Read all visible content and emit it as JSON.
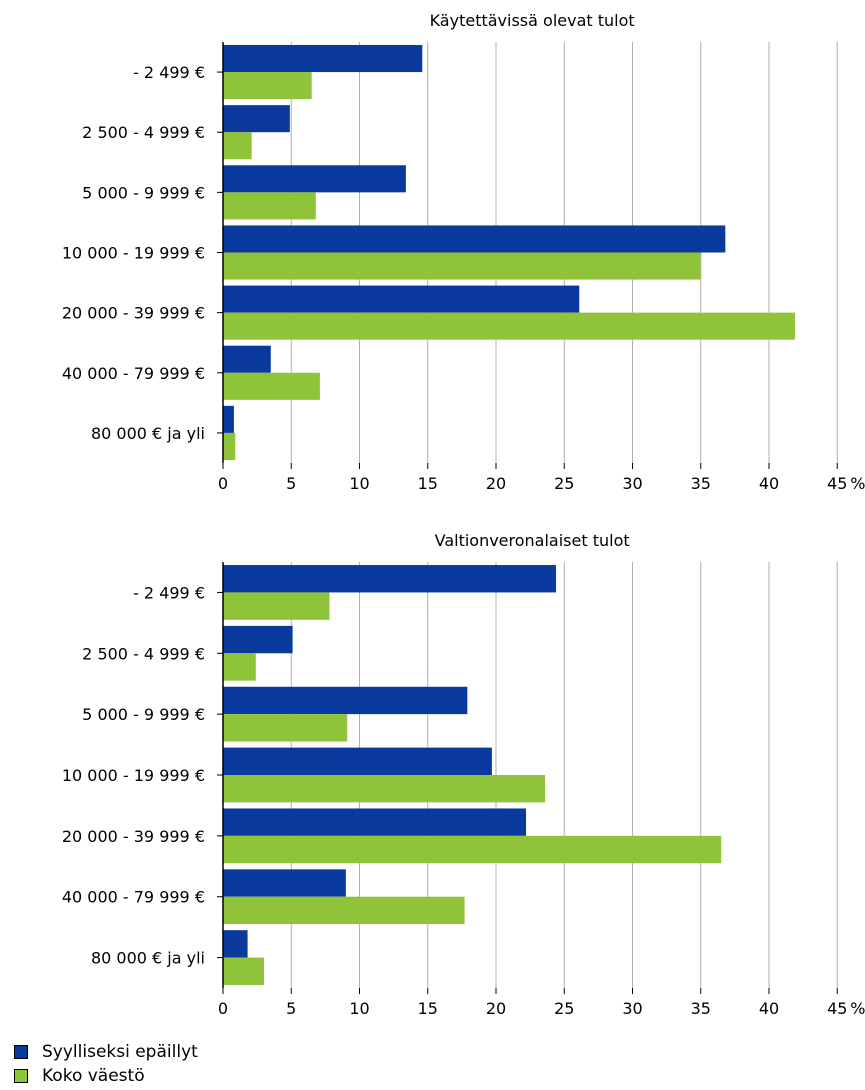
{
  "colors": {
    "suspected": "#0b3a9e",
    "population": "#8fc43a",
    "grid": "#b0b0b0",
    "axis": "#000000"
  },
  "unit_label": "%",
  "chart_data": [
    {
      "type": "bar",
      "orientation": "horizontal",
      "title": "Käytettävissä olevat tulot",
      "categories": [
        "- 2 499 €",
        "2 500 - 4 999 €",
        "5 000 - 9 999 €",
        "10 000 - 19 999 €",
        "20 000 - 39 999 €",
        "40 000 - 79 999 €",
        "80 000 € ja yli"
      ],
      "series": [
        {
          "name": "Syylliseksi epäillyt",
          "values": [
            14.6,
            4.9,
            13.4,
            36.8,
            26.1,
            3.5,
            0.8
          ]
        },
        {
          "name": "Koko väestö",
          "values": [
            6.5,
            2.1,
            6.8,
            35.0,
            41.9,
            7.1,
            0.9
          ]
        }
      ],
      "xticks": [
        "0",
        "5",
        "10",
        "15",
        "20",
        "25",
        "30",
        "35",
        "40",
        "45"
      ],
      "xlim": [
        0,
        45
      ],
      "grid": true
    },
    {
      "type": "bar",
      "orientation": "horizontal",
      "title": "Valtionveronalaiset tulot",
      "categories": [
        "- 2 499 €",
        "2 500 - 4 999 €",
        "5 000 - 9 999 €",
        "10 000 - 19 999 €",
        "20 000 - 39 999 €",
        "40 000 - 79 999 €",
        "80 000 € ja yli"
      ],
      "series": [
        {
          "name": "Syylliseksi epäillyt",
          "values": [
            24.4,
            5.1,
            17.9,
            19.7,
            22.2,
            9.0,
            1.8
          ]
        },
        {
          "name": "Koko väestö",
          "values": [
            7.8,
            2.4,
            9.1,
            23.6,
            36.5,
            17.7,
            3.0
          ]
        }
      ],
      "xticks": [
        "0",
        "5",
        "10",
        "15",
        "20",
        "25",
        "30",
        "35",
        "40",
        "45"
      ],
      "xlim": [
        0,
        45
      ],
      "grid": true
    }
  ],
  "legend": [
    {
      "label": "Syylliseksi epäillyt",
      "color": "#0b3a9e"
    },
    {
      "label": "Koko väestö",
      "color": "#8fc43a"
    }
  ]
}
